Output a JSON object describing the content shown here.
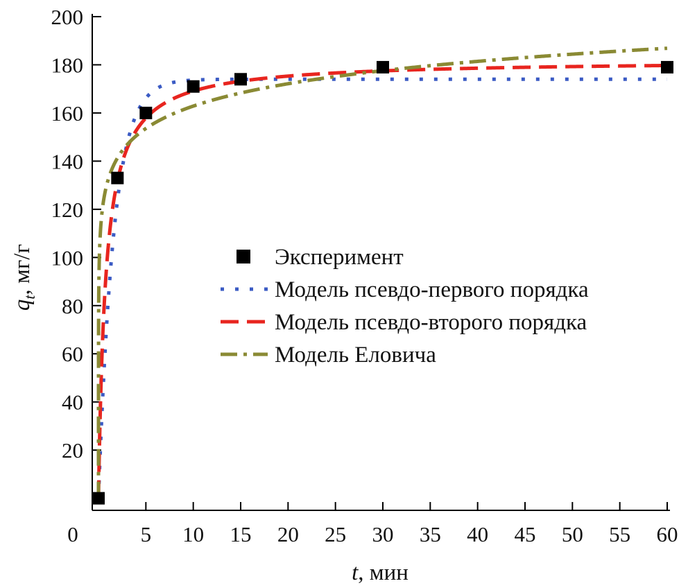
{
  "chart_data": {
    "type": "scatter",
    "xlabel_var": "t",
    "xlabel_unit": ", мин",
    "ylabel_var": "q",
    "ylabel_sub": "t",
    "ylabel_unit": ", мг/г",
    "xlim": [
      0,
      60
    ],
    "ylim": [
      0,
      200
    ],
    "xticks": [
      0,
      5,
      10,
      15,
      20,
      25,
      30,
      35,
      40,
      45,
      50,
      55,
      60
    ],
    "yticks": [
      20,
      40,
      60,
      80,
      100,
      120,
      140,
      160,
      180,
      200
    ],
    "grid": false,
    "legend_position": "center-right",
    "series": [
      {
        "name": "Эксперимент",
        "kind": "points",
        "color": "#000000",
        "x": [
          0,
          2,
          5,
          10,
          15,
          30,
          60
        ],
        "y": [
          0,
          133,
          160,
          171,
          174,
          179,
          179
        ]
      },
      {
        "name": "Модель псевдо-первого порядка",
        "kind": "pfo",
        "color": "#3b5bc4",
        "params": {
          "qe": 174,
          "k1": 0.62
        }
      },
      {
        "name": "Модель псевдо-второго порядка",
        "kind": "pso",
        "color": "#e8251f",
        "params": {
          "qe": 182,
          "k2": 0.0072
        }
      },
      {
        "name": "Модель Еловича",
        "kind": "elovich",
        "color": "#8a8a34",
        "params": {
          "a": 132,
          "b": 13.4
        }
      }
    ]
  }
}
